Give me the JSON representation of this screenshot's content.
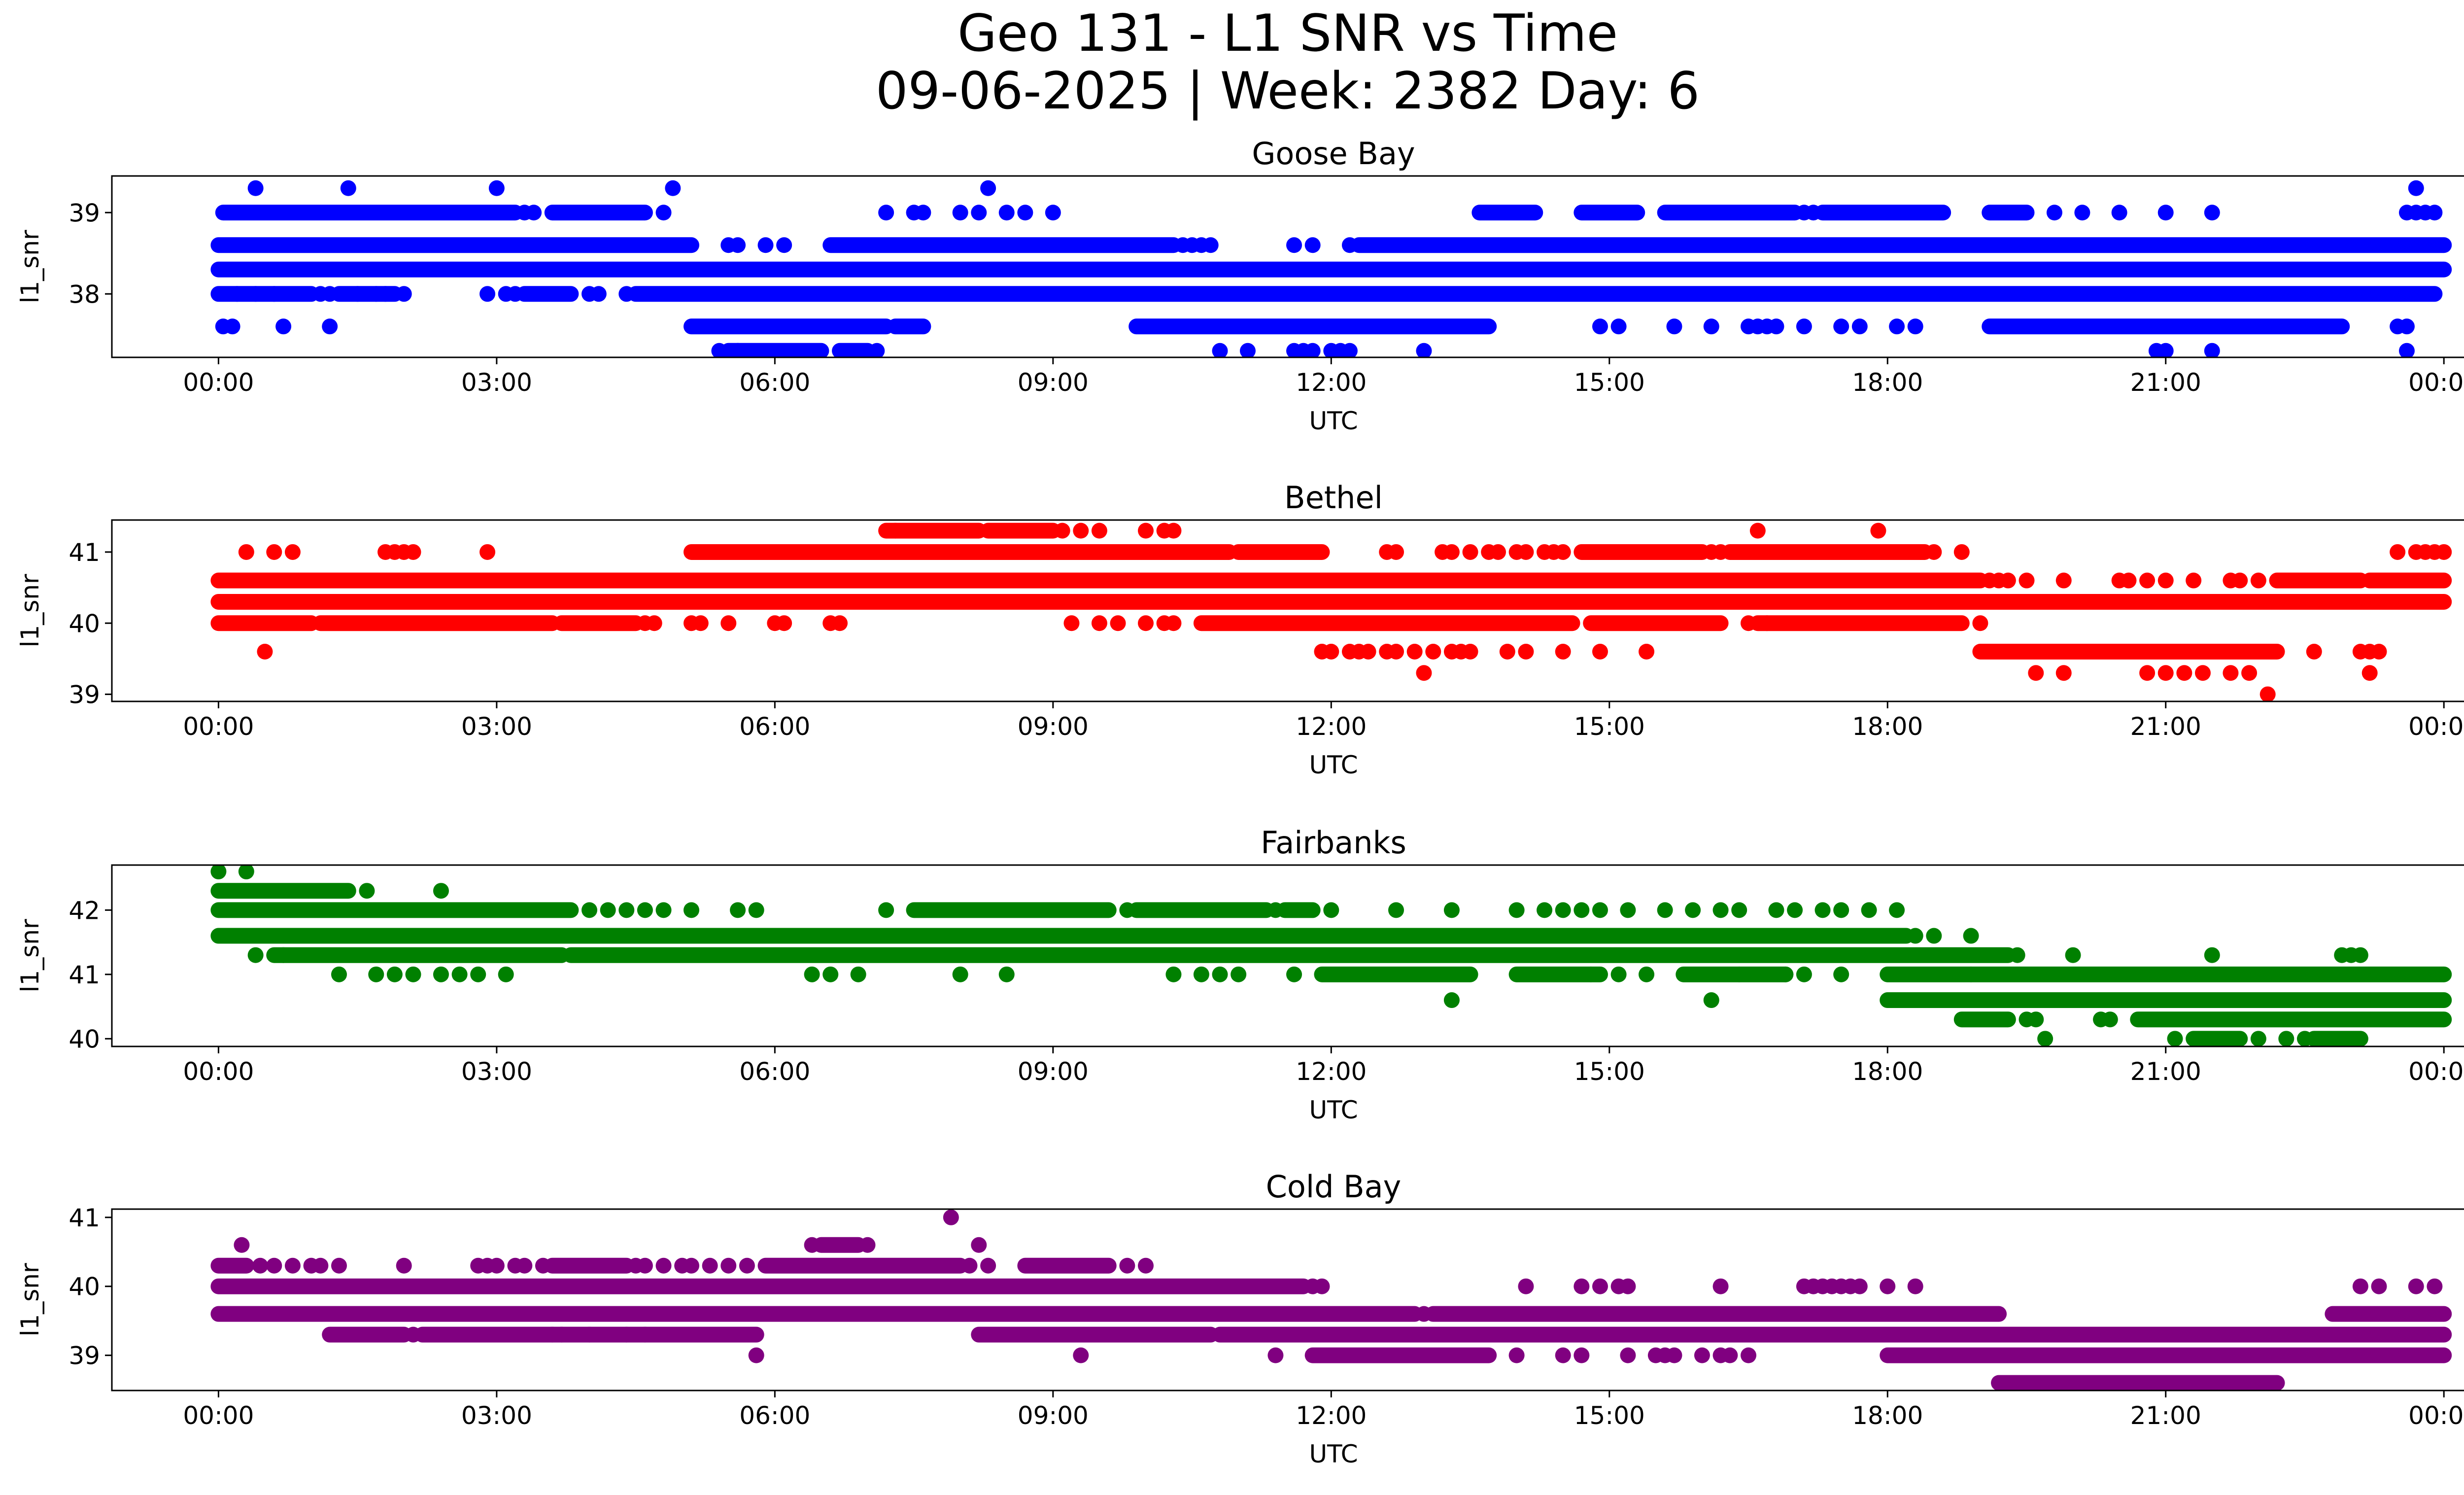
{
  "figure": {
    "title_line1": "Geo 131 - L1 SNR vs Time",
    "title_line2": "09-06-2025 | Week: 2382 Day: 6"
  },
  "chart_data": [
    {
      "type": "scatter",
      "title": "Goose Bay",
      "xlabel": "UTC",
      "ylabel": "l1_snr",
      "color": "#0000ff",
      "x_unit": "hours UTC",
      "xlim": [
        -1.15,
        25.2
      ],
      "ylim": [
        37.22,
        39.45
      ],
      "xticks": [
        0,
        3,
        6,
        9,
        12,
        15,
        18,
        21,
        24
      ],
      "xtick_labels": [
        "00:00",
        "03:00",
        "06:00",
        "09:00",
        "12:00",
        "15:00",
        "18:00",
        "21:00",
        "00:00"
      ],
      "yticks": [
        38,
        39
      ],
      "ytick_labels": [
        "38",
        "39"
      ],
      "levels": [
        {
          "y": 39.3,
          "ranges": [],
          "points": [
            0.4,
            1.4,
            3.0,
            4.9,
            8.3,
            23.7
          ]
        },
        {
          "y": 39.0,
          "ranges": [
            [
              0.05,
              3.2
            ],
            [
              3.6,
              4.6
            ],
            [
              13.6,
              14.2
            ],
            [
              14.7,
              15.3
            ],
            [
              15.6,
              17.0
            ],
            [
              17.3,
              18.6
            ],
            [
              19.1,
              19.5
            ]
          ],
          "points": [
            3.3,
            3.4,
            4.8,
            7.2,
            7.5,
            7.6,
            8.0,
            8.2,
            8.5,
            8.7,
            9.0,
            17.1,
            17.2,
            19.8,
            20.1,
            20.5,
            21.0,
            21.5,
            23.6,
            23.7,
            23.8,
            23.9
          ]
        },
        {
          "y": 38.6,
          "ranges": [
            [
              0.0,
              5.1
            ],
            [
              6.6,
              10.3
            ],
            [
              12.3,
              24.0
            ]
          ],
          "points": [
            5.5,
            5.6,
            5.9,
            6.1,
            10.4,
            10.5,
            10.6,
            10.7,
            11.6,
            11.8,
            12.2
          ]
        },
        {
          "y": 38.3,
          "ranges": [
            [
              0.0,
              24.0
            ]
          ],
          "points": []
        },
        {
          "y": 38.0,
          "ranges": [
            [
              0.0,
              1.0
            ],
            [
              1.3,
              1.9
            ],
            [
              3.3,
              3.8
            ],
            [
              4.5,
              23.9
            ]
          ],
          "points": [
            0.2,
            0.4,
            0.6,
            1.1,
            1.2,
            1.5,
            1.7,
            1.8,
            2.0,
            2.9,
            3.1,
            3.2,
            4.0,
            4.1,
            4.4
          ]
        },
        {
          "y": 37.6,
          "ranges": [
            [
              5.1,
              7.2
            ],
            [
              7.3,
              7.6
            ],
            [
              9.9,
              13.7
            ],
            [
              19.1,
              22.9
            ]
          ],
          "points": [
            0.05,
            0.15,
            0.7,
            1.2,
            14.9,
            15.1,
            15.7,
            16.1,
            16.5,
            16.6,
            16.7,
            16.8,
            17.1,
            17.5,
            17.7,
            18.1,
            18.3,
            23.5,
            23.6
          ]
        },
        {
          "y": 37.3,
          "ranges": [
            [
              5.5,
              6.5
            ],
            [
              6.7,
              7.0
            ]
          ],
          "points": [
            5.4,
            5.6,
            7.1,
            10.8,
            11.1,
            11.6,
            11.7,
            11.8,
            12.0,
            12.1,
            12.2,
            13.0,
            20.9,
            21.0,
            21.5,
            23.6
          ]
        }
      ]
    },
    {
      "type": "scatter",
      "title": "Bethel",
      "xlabel": "UTC",
      "ylabel": "l1_snr",
      "color": "#ff0000",
      "x_unit": "hours UTC",
      "xlim": [
        -1.15,
        25.2
      ],
      "ylim": [
        38.9,
        41.45
      ],
      "xticks": [
        0,
        3,
        6,
        9,
        12,
        15,
        18,
        21,
        24
      ],
      "xtick_labels": [
        "00:00",
        "03:00",
        "06:00",
        "09:00",
        "12:00",
        "15:00",
        "18:00",
        "21:00",
        "00:00"
      ],
      "yticks": [
        39,
        40,
        41
      ],
      "ytick_labels": [
        "39",
        "40",
        "41"
      ],
      "levels": [
        {
          "y": 41.3,
          "ranges": [
            [
              7.2,
              8.2
            ],
            [
              8.3,
              9.0
            ]
          ],
          "points": [
            7.3,
            9.1,
            9.3,
            9.5,
            10.0,
            10.2,
            10.3,
            16.6,
            17.9
          ]
        },
        {
          "y": 41.0,
          "ranges": [
            [
              5.1,
              10.9
            ],
            [
              11.0,
              11.9
            ],
            [
              14.7,
              16.0
            ],
            [
              16.3,
              18.4
            ]
          ],
          "points": [
            0.3,
            0.6,
            0.8,
            1.8,
            1.9,
            2.0,
            2.1,
            2.9,
            12.6,
            12.7,
            13.2,
            13.3,
            13.5,
            13.7,
            13.8,
            14.0,
            14.1,
            14.3,
            14.4,
            14.5,
            16.1,
            16.2,
            18.5,
            18.8,
            23.5,
            23.7,
            23.8,
            23.9,
            24.0
          ]
        },
        {
          "y": 40.6,
          "ranges": [
            [
              0.0,
              19.0
            ],
            [
              22.2,
              23.1
            ],
            [
              23.2,
              24.0
            ]
          ],
          "points": [
            19.1,
            19.2,
            19.3,
            19.5,
            19.9,
            20.5,
            20.6,
            20.8,
            21.0,
            21.3,
            21.7,
            21.8,
            22.0
          ]
        },
        {
          "y": 40.3,
          "ranges": [
            [
              0.0,
              24.0
            ]
          ],
          "points": []
        },
        {
          "y": 40.0,
          "ranges": [
            [
              0.0,
              1.0
            ],
            [
              1.1,
              3.6
            ],
            [
              3.7,
              4.5
            ],
            [
              10.6,
              14.6
            ],
            [
              14.8,
              16.2
            ],
            [
              16.6,
              18.8
            ]
          ],
          "points": [
            4.6,
            4.7,
            5.1,
            5.2,
            5.5,
            6.0,
            6.1,
            6.6,
            6.7,
            9.2,
            9.5,
            9.7,
            10.0,
            10.2,
            10.3,
            16.5,
            16.7,
            19.0
          ]
        },
        {
          "y": 39.6,
          "ranges": [
            [
              19.0,
              22.2
            ]
          ],
          "points": [
            0.5,
            11.9,
            12.0,
            12.2,
            12.3,
            12.4,
            12.6,
            12.7,
            12.9,
            13.1,
            13.3,
            13.4,
            13.5,
            13.9,
            14.1,
            14.5,
            14.9,
            15.4,
            22.6,
            23.1,
            23.2,
            23.3
          ]
        },
        {
          "y": 39.3,
          "ranges": [],
          "points": [
            13.0,
            19.6,
            19.9,
            20.8,
            21.0,
            21.2,
            21.4,
            21.7,
            21.9,
            23.2
          ]
        },
        {
          "y": 39.0,
          "ranges": [],
          "points": [
            22.1
          ]
        }
      ]
    },
    {
      "type": "scatter",
      "title": "Fairbanks",
      "xlabel": "UTC",
      "ylabel": "l1_snr",
      "color": "#008000",
      "x_unit": "hours UTC",
      "xlim": [
        -1.15,
        25.2
      ],
      "ylim": [
        39.88,
        42.7
      ],
      "xticks": [
        0,
        3,
        6,
        9,
        12,
        15,
        18,
        21,
        24
      ],
      "xtick_labels": [
        "00:00",
        "03:00",
        "06:00",
        "09:00",
        "12:00",
        "15:00",
        "18:00",
        "21:00",
        "00:00"
      ],
      "yticks": [
        40,
        41,
        42
      ],
      "ytick_labels": [
        "40",
        "41",
        "42"
      ],
      "levels": [
        {
          "y": 42.6,
          "ranges": [],
          "points": [
            0.0,
            0.3
          ]
        },
        {
          "y": 42.3,
          "ranges": [
            [
              0.0,
              1.4
            ]
          ],
          "points": [
            1.6,
            2.4
          ]
        },
        {
          "y": 42.0,
          "ranges": [
            [
              0.0,
              3.8
            ],
            [
              7.5,
              9.6
            ],
            [
              9.9,
              11.3
            ],
            [
              11.5,
              11.8
            ]
          ],
          "points": [
            4.0,
            4.2,
            4.4,
            4.6,
            4.8,
            5.1,
            5.6,
            5.8,
            7.2,
            9.8,
            11.4,
            12.0,
            12.7,
            13.3,
            14.0,
            14.3,
            14.5,
            14.7,
            14.9,
            15.2,
            15.6,
            15.9,
            16.2,
            16.4,
            16.8,
            17.0,
            17.3,
            17.5,
            17.8,
            18.1
          ]
        },
        {
          "y": 41.6,
          "ranges": [
            [
              0.0,
              18.2
            ]
          ],
          "points": [
            18.3,
            18.5,
            18.9
          ]
        },
        {
          "y": 41.3,
          "ranges": [
            [
              0.6,
              3.7
            ],
            [
              3.8,
              19.3
            ]
          ],
          "points": [
            0.4,
            0.7,
            19.4,
            20.0,
            21.5,
            22.9,
            23.0,
            23.1
          ]
        },
        {
          "y": 41.0,
          "ranges": [
            [
              11.9,
              13.5
            ],
            [
              14.0,
              14.9
            ],
            [
              15.8,
              16.9
            ],
            [
              18.0,
              18.9
            ],
            [
              18.9,
              24.0
            ]
          ],
          "points": [
            1.3,
            1.7,
            1.9,
            2.1,
            2.4,
            2.6,
            2.8,
            3.1,
            6.4,
            6.6,
            6.9,
            8.0,
            8.5,
            10.3,
            10.6,
            10.8,
            11.0,
            11.6,
            14.8,
            15.1,
            15.4,
            16.4,
            16.9,
            17.1,
            17.5
          ]
        },
        {
          "y": 40.6,
          "ranges": [
            [
              18.0,
              24.0
            ]
          ],
          "points": [
            13.3,
            16.1
          ]
        },
        {
          "y": 40.3,
          "ranges": [
            [
              18.8,
              19.3
            ],
            [
              20.7,
              24.0
            ]
          ],
          "points": [
            19.5,
            19.6,
            20.3,
            20.4
          ]
        },
        {
          "y": 40.0,
          "ranges": [
            [
              21.3,
              21.8
            ],
            [
              22.6,
              23.1
            ]
          ],
          "points": [
            19.7,
            21.1,
            22.0,
            22.3,
            22.5
          ]
        }
      ]
    },
    {
      "type": "scatter",
      "title": "Cold Bay",
      "xlabel": "UTC",
      "ylabel": "l1_snr",
      "color": "#800080",
      "x_unit": "hours UTC",
      "xlim": [
        -1.15,
        25.2
      ],
      "ylim": [
        38.49,
        41.12
      ],
      "xticks": [
        0,
        3,
        6,
        9,
        12,
        15,
        18,
        21,
        24
      ],
      "xtick_labels": [
        "00:00",
        "03:00",
        "06:00",
        "09:00",
        "12:00",
        "15:00",
        "18:00",
        "21:00",
        "00:00"
      ],
      "yticks": [
        39,
        40,
        41
      ],
      "ytick_labels": [
        "39",
        "40",
        "41"
      ],
      "levels": [
        {
          "y": 41.0,
          "ranges": [],
          "points": [
            7.9
          ]
        },
        {
          "y": 40.6,
          "ranges": [
            [
              6.5,
              6.9
            ]
          ],
          "points": [
            0.25,
            6.4,
            7.0,
            8.2
          ]
        },
        {
          "y": 40.3,
          "ranges": [
            [
              0.0,
              0.3
            ],
            [
              3.6,
              4.4
            ],
            [
              5.9,
              8.0
            ],
            [
              8.7,
              9.6
            ]
          ],
          "points": [
            0.45,
            0.6,
            0.8,
            1.0,
            1.1,
            1.3,
            2.0,
            2.8,
            2.9,
            3.0,
            3.2,
            3.3,
            3.5,
            4.5,
            4.6,
            4.8,
            5.0,
            5.1,
            5.3,
            5.5,
            5.7,
            8.1,
            8.3,
            9.8,
            10.0
          ]
        },
        {
          "y": 40.0,
          "ranges": [
            [
              0.0,
              11.7
            ]
          ],
          "points": [
            11.8,
            11.9,
            14.1,
            14.7,
            14.9,
            15.1,
            15.2,
            16.2,
            17.1,
            17.2,
            17.3,
            17.4,
            17.5,
            17.6,
            17.7,
            18.0,
            18.3,
            23.1,
            23.3,
            23.7,
            23.9
          ]
        },
        {
          "y": 39.6,
          "ranges": [
            [
              0.0,
              12.9
            ],
            [
              13.1,
              19.2
            ],
            [
              22.8,
              24.0
            ]
          ],
          "points": [
            13.0
          ]
        },
        {
          "y": 39.3,
          "ranges": [
            [
              1.2,
              2.0
            ],
            [
              2.2,
              5.8
            ],
            [
              8.2,
              10.7
            ],
            [
              10.8,
              24.0
            ]
          ],
          "points": [
            2.1,
            3.6,
            3.7,
            4.0,
            4.4,
            4.6
          ]
        },
        {
          "y": 39.0,
          "ranges": [
            [
              11.8,
              13.7
            ],
            [
              18.0,
              24.0
            ]
          ],
          "points": [
            5.8,
            9.3,
            11.4,
            14.0,
            14.5,
            14.7,
            15.2,
            15.5,
            15.6,
            15.7,
            16.0,
            16.2,
            16.3,
            16.5
          ]
        },
        {
          "y": 38.6,
          "ranges": [
            [
              19.2,
              22.2
            ]
          ],
          "points": []
        }
      ]
    }
  ]
}
